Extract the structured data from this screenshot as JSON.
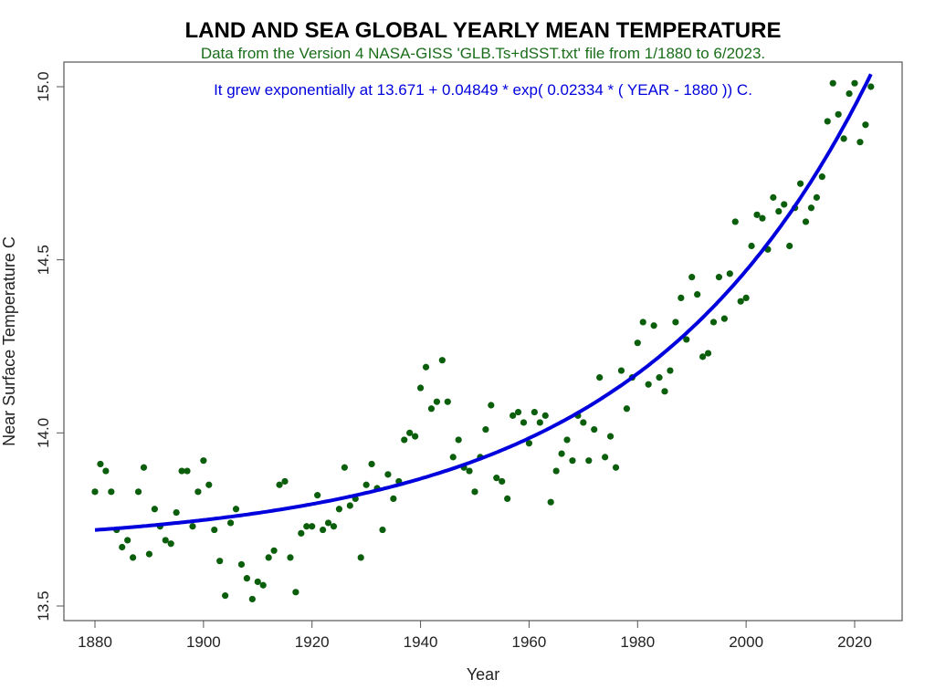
{
  "chart_data": {
    "type": "scatter",
    "title": "LAND AND SEA GLOBAL YEARLY MEAN TEMPERATURE",
    "subtitle": "Data from the Version 4 NASA-GISS 'GLB.Ts+dSST.txt' file from 1/1880 to 6/2023.",
    "annotation": "It grew exponentially at 13.671 + 0.04849 * exp( 0.02334 * ( YEAR - 1880 )) C.",
    "xlabel": "Year",
    "ylabel": "Near Surface Temperature C",
    "xlim": [
      1874,
      2029
    ],
    "ylim": [
      13.46,
      15.07
    ],
    "xticks": [
      1880,
      1900,
      1920,
      1940,
      1960,
      1980,
      2000,
      2020
    ],
    "yticks": [
      13.5,
      14.0,
      14.5,
      15.0
    ],
    "ytick_labels": [
      "13.5",
      "14.0",
      "14.5",
      "15.0"
    ],
    "grid": false,
    "colors": {
      "points": "#0b5e0b",
      "fit": "#0000dd",
      "title": "#000000",
      "subtitle": "#1a6e1a",
      "annotation": "#0000dd"
    },
    "fit": {
      "a": 13.671,
      "b": 0.04849,
      "c": 0.02334,
      "x0": 1880,
      "range": [
        1880,
        2023
      ]
    },
    "x_start": 1880,
    "y": [
      13.83,
      13.91,
      13.89,
      13.83,
      13.72,
      13.67,
      13.69,
      13.64,
      13.83,
      13.9,
      13.65,
      13.78,
      13.73,
      13.69,
      13.68,
      13.77,
      13.89,
      13.89,
      13.73,
      13.83,
      13.92,
      13.85,
      13.72,
      13.63,
      13.53,
      13.74,
      13.78,
      13.62,
      13.58,
      13.52,
      13.57,
      13.56,
      13.64,
      13.66,
      13.85,
      13.86,
      13.64,
      13.54,
      13.71,
      13.73,
      13.73,
      13.82,
      13.72,
      13.74,
      13.73,
      13.78,
      13.9,
      13.79,
      13.81,
      13.64,
      13.85,
      13.91,
      13.84,
      13.72,
      13.88,
      13.81,
      13.86,
      13.98,
      14.0,
      13.99,
      14.13,
      14.19,
      14.07,
      14.09,
      14.21,
      14.09,
      13.93,
      13.98,
      13.9,
      13.89,
      13.83,
      13.93,
      14.01,
      14.08,
      13.87,
      13.86,
      13.81,
      14.05,
      14.06,
      14.03,
      13.97,
      14.06,
      14.03,
      14.05,
      13.8,
      13.89,
      13.94,
      13.98,
      13.92,
      14.05,
      14.03,
      13.92,
      14.01,
      14.16,
      13.93,
      13.99,
      13.9,
      14.18,
      14.07,
      14.16,
      14.26,
      14.32,
      14.14,
      14.31,
      14.16,
      14.12,
      14.18,
      14.32,
      14.39,
      14.27,
      14.45,
      14.4,
      14.22,
      14.23,
      14.32,
      14.45,
      14.33,
      14.46,
      14.61,
      14.38,
      14.39,
      14.54,
      14.63,
      14.62,
      14.53,
      14.68,
      14.64,
      14.66,
      14.54,
      14.65,
      14.72,
      14.61,
      14.65,
      14.68,
      14.74,
      14.9,
      15.01,
      14.92,
      14.85,
      14.98,
      15.01,
      14.84,
      14.89,
      15.0
    ]
  }
}
